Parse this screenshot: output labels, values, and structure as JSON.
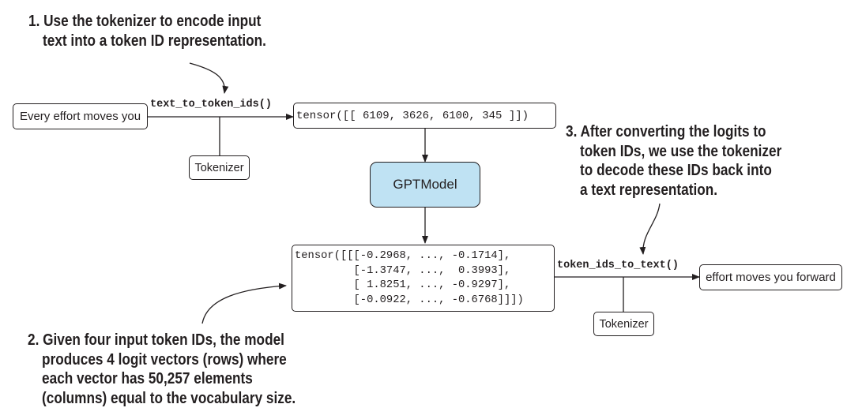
{
  "notes": {
    "step1": [
      "1. Use the tokenizer to encode input",
      "text into a token ID representation."
    ],
    "step2": [
      "2. Given four input token IDs, the model",
      "produces 4 logit vectors (rows) where",
      "each vector has 50,257 elements",
      "(columns) equal to the vocabulary size."
    ],
    "step3": [
      "3. After converting the logits to",
      "token IDs, we use the tokenizer",
      "to decode these IDs back into",
      "a text representation."
    ]
  },
  "boxes": {
    "input_text": "Every effort moves you",
    "token_tensor": "tensor([[ 6109, 3626, 6100, 345 ]])",
    "tokenizer_top": "Tokenizer",
    "model": "GPTModel",
    "logits_tensor": [
      "tensor([[[-0.2968, ..., -0.1714],",
      "         [-1.3747, ...,  0.3993],",
      "         [ 1.8251, ..., -0.9297],",
      "         [-0.0922, ..., -0.6768]]])"
    ],
    "tokenizer_bottom": "Tokenizer",
    "output_text": "effort moves you forward"
  },
  "functions": {
    "encode": "text_to_token_ids()",
    "decode": "token_ids_to_text()"
  },
  "colors": {
    "line": "#231f20",
    "model_fill": "#bfe2f3"
  }
}
